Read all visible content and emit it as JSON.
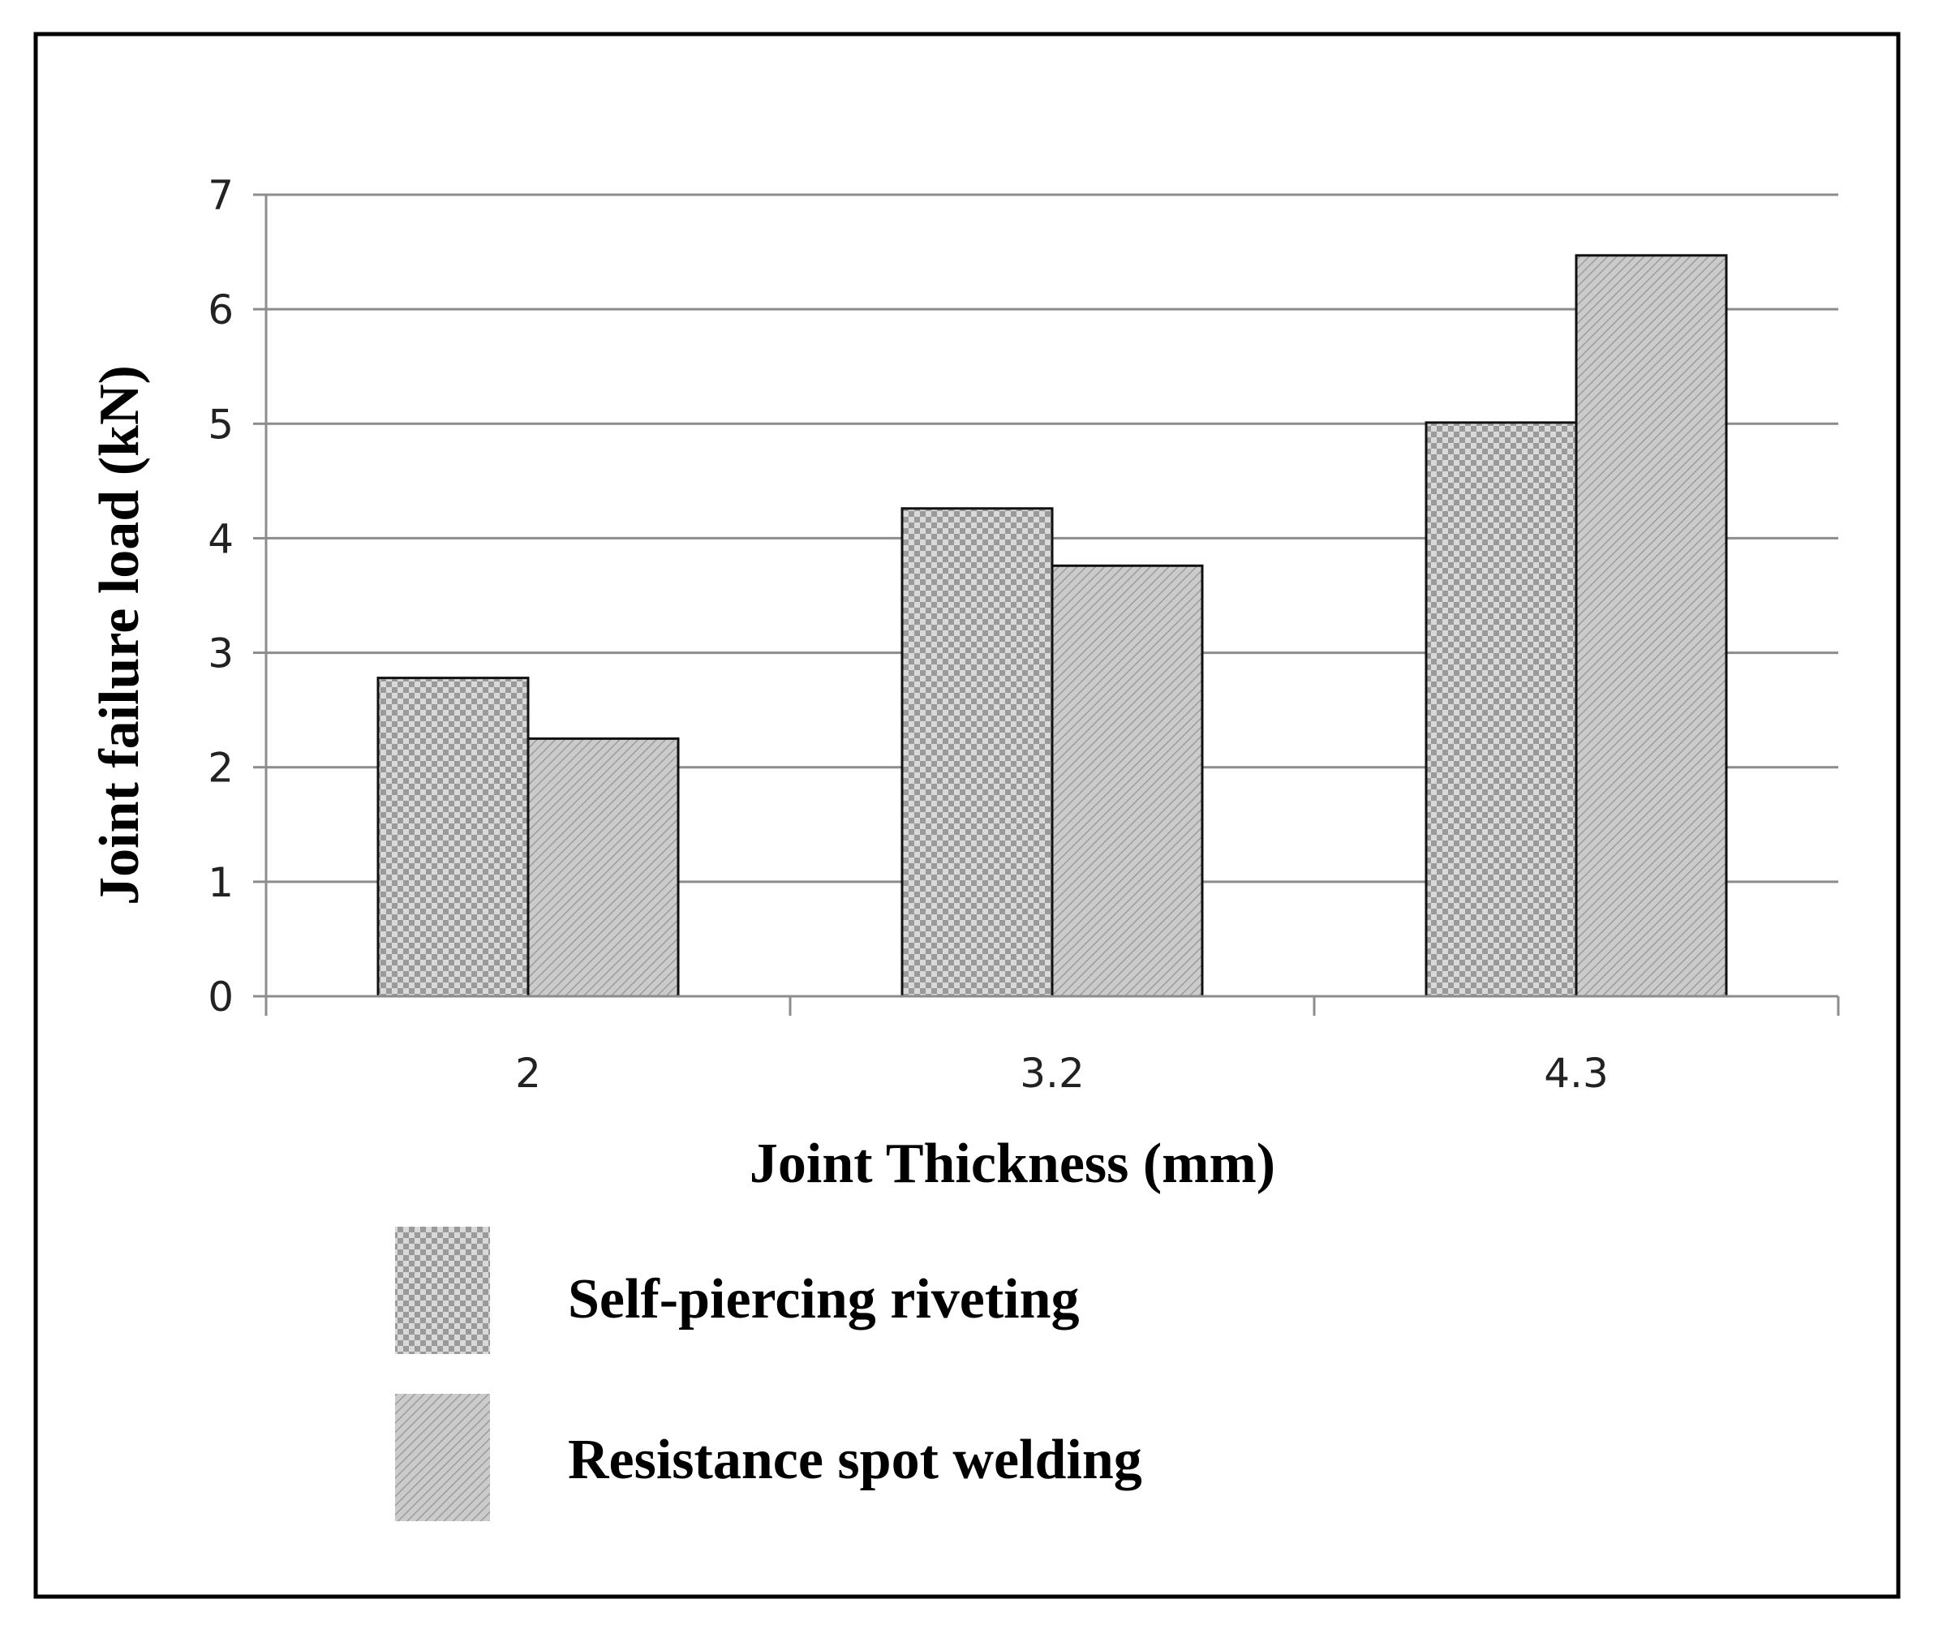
{
  "chart_data": {
    "type": "bar",
    "title": "",
    "xlabel": "Joint Thickness (mm)",
    "ylabel": "Joint failure load (kN)",
    "categories": [
      "2",
      "3.2",
      "4.3"
    ],
    "series": [
      {
        "name": "Self-piercing riveting",
        "values": [
          2.78,
          4.26,
          5.01
        ]
      },
      {
        "name": "Resistance spot welding",
        "values": [
          2.25,
          3.76,
          6.47
        ]
      }
    ],
    "ylim": [
      0,
      7
    ],
    "yticks": [
      "0",
      "1",
      "2",
      "3",
      "4",
      "5",
      "6",
      "7"
    ],
    "grid": true,
    "legend_position": "bottom"
  },
  "colors": {
    "series1_fill": "#d6d6d6",
    "series1_line": "#8a8a8a",
    "series2_fill": "#c6c6c6",
    "series2_line": "#9a9a9a",
    "grid": "#8c8c8c",
    "frame": "#000000"
  }
}
